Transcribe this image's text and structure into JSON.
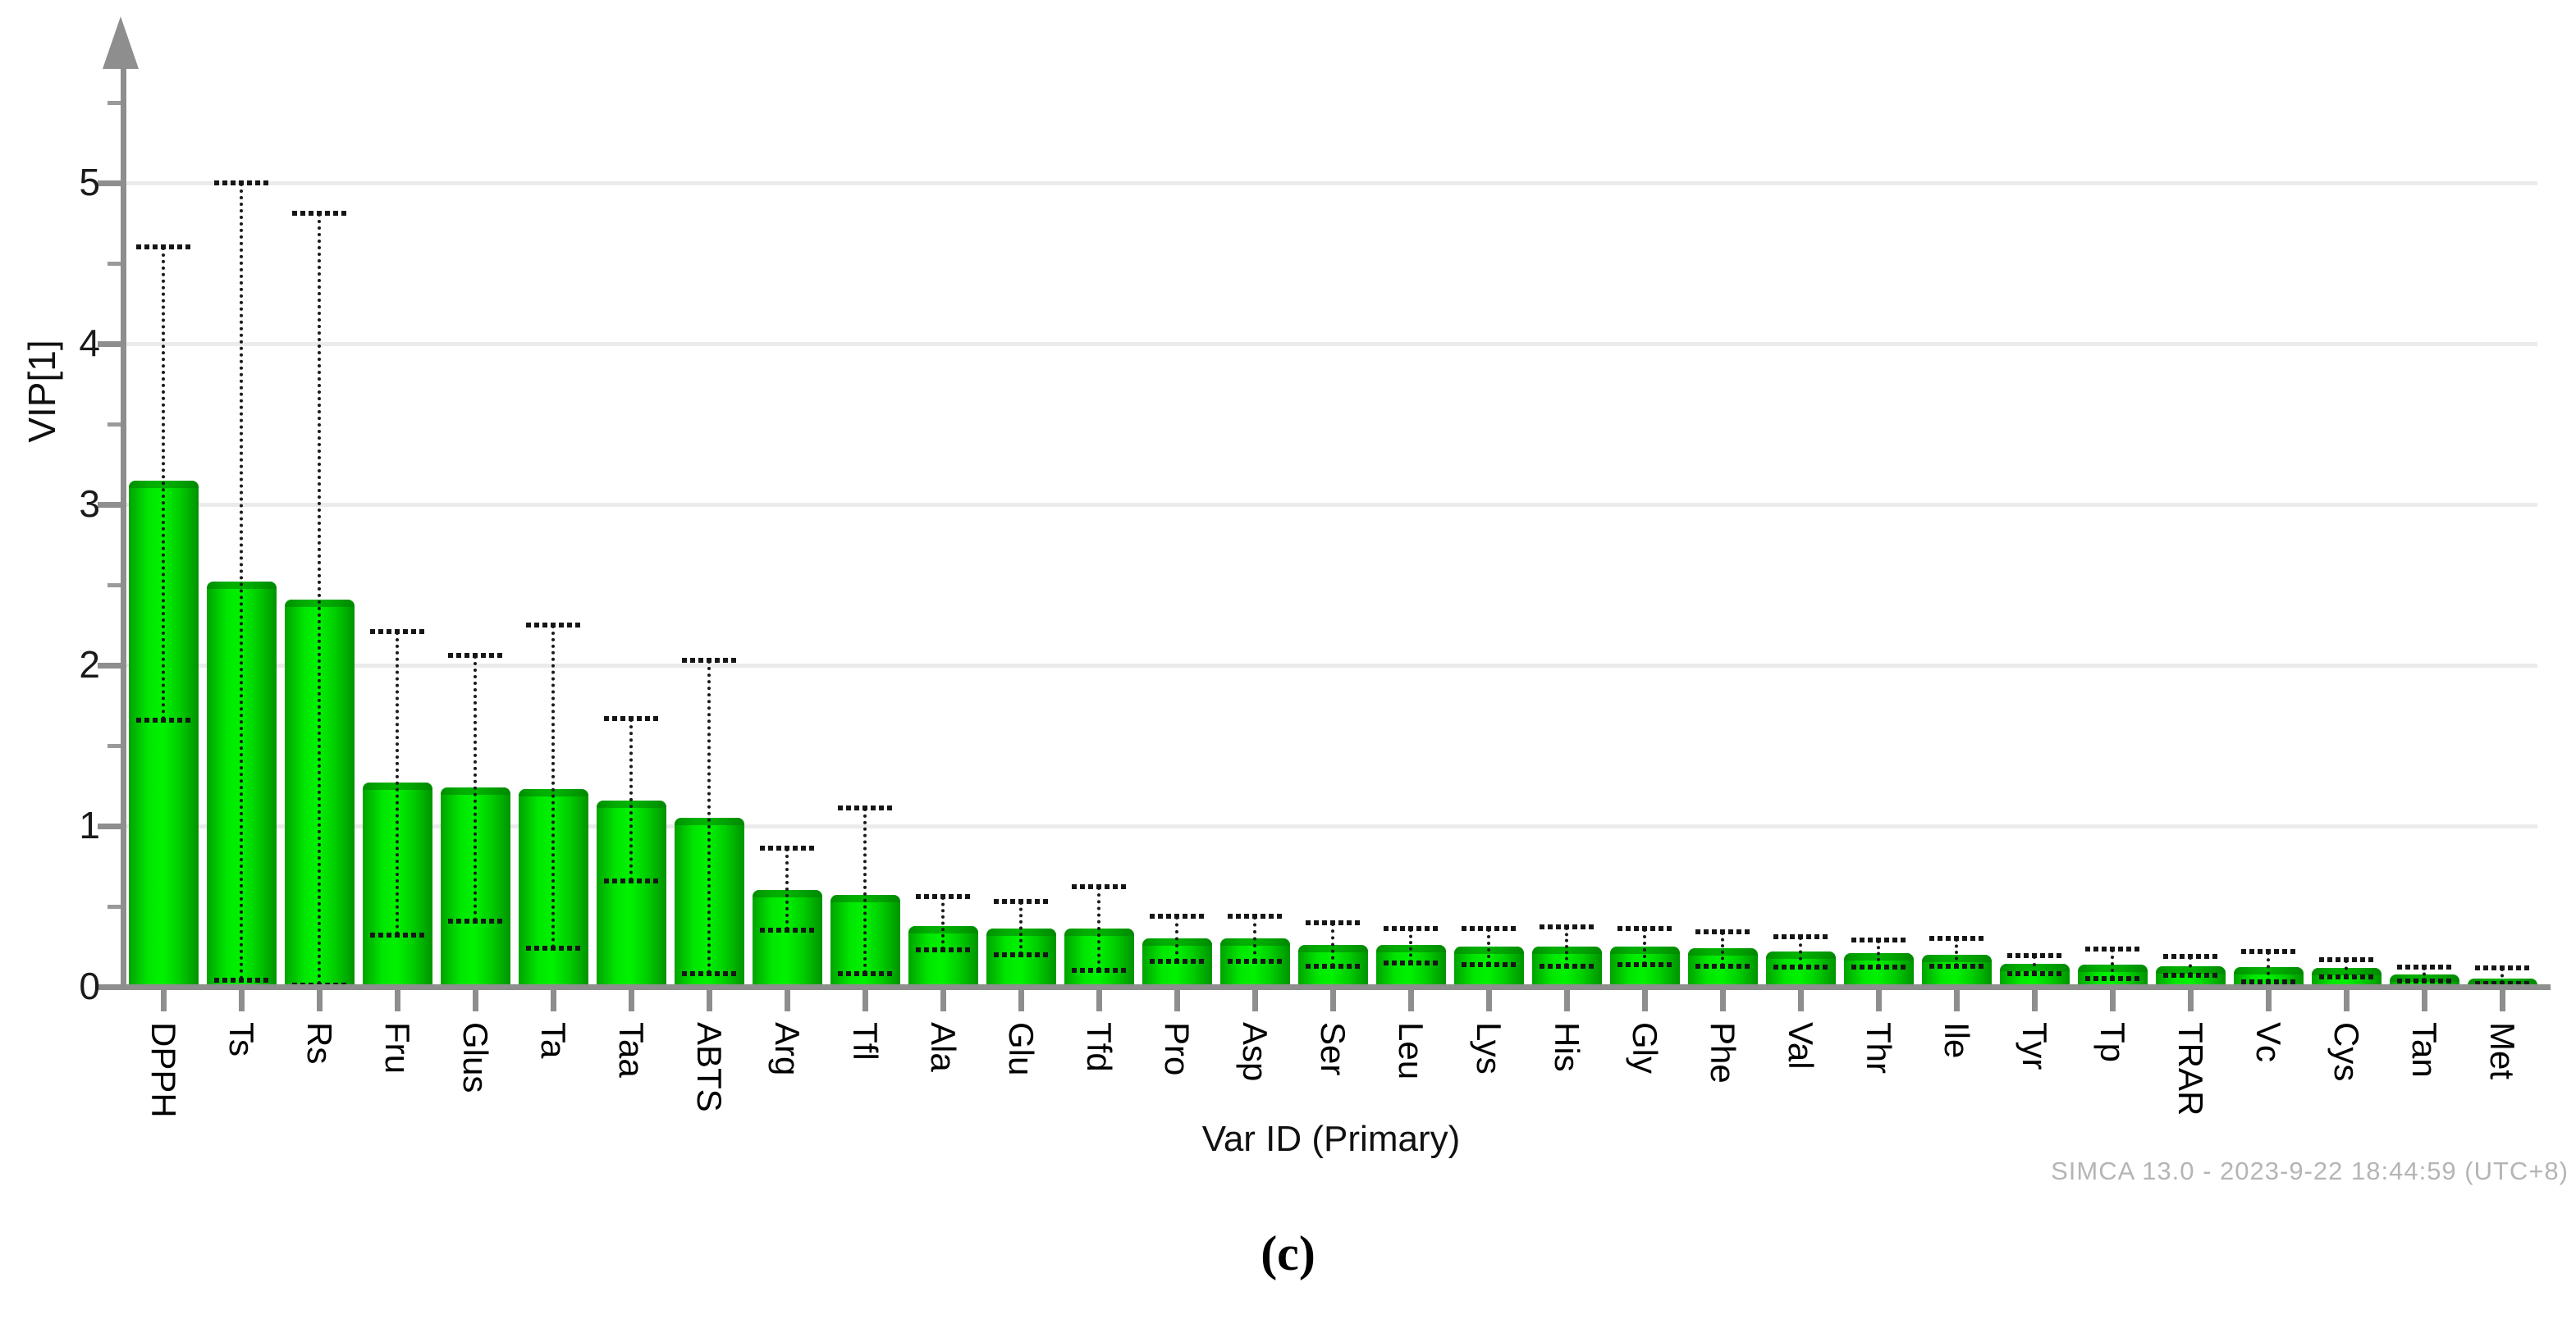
{
  "chart_data": {
    "type": "bar",
    "title": "",
    "xlabel": "Var ID (Primary)",
    "ylabel": "VIP[1]",
    "ylim": [
      0,
      5.7
    ],
    "yticks": [
      0,
      1,
      2,
      3,
      4,
      5
    ],
    "grid": "horizontal-major",
    "legend": "none",
    "bar_color_center": "#00F200",
    "bar_color_edge": "#009300",
    "error_bar_color": "#1b1b1b",
    "axis_color": "#8e8e8e",
    "gridline_color": "#ebebeb",
    "categories": [
      "DPPH",
      "Ts",
      "Rs",
      "Fru",
      "Glus",
      "Ta",
      "Taa",
      "ABTS",
      "Arg",
      "Tfl",
      "Ala",
      "Glu",
      "Tfd",
      "Pro",
      "Asp",
      "Ser",
      "Leu",
      "Lys",
      "His",
      "Gly",
      "Phe",
      "Val",
      "Thr",
      "Ile",
      "Tyr",
      "Tp",
      "TRAR",
      "Vc",
      "Cys",
      "Tan",
      "Met"
    ],
    "values": [
      3.15,
      2.52,
      2.41,
      1.27,
      1.24,
      1.23,
      1.16,
      1.05,
      0.6,
      0.57,
      0.38,
      0.36,
      0.36,
      0.3,
      0.3,
      0.26,
      0.26,
      0.25,
      0.25,
      0.25,
      0.24,
      0.22,
      0.21,
      0.2,
      0.145,
      0.14,
      0.13,
      0.12,
      0.115,
      0.075,
      0.05
    ],
    "error_low": [
      1.66,
      0.04,
      0.01,
      0.32,
      0.41,
      0.24,
      0.66,
      0.08,
      0.35,
      0.08,
      0.23,
      0.2,
      0.1,
      0.16,
      0.16,
      0.13,
      0.15,
      0.14,
      0.13,
      0.14,
      0.13,
      0.12,
      0.12,
      0.13,
      0.08,
      0.05,
      0.07,
      0.03,
      0.06,
      0.035,
      0.02
    ],
    "error_high": [
      4.6,
      5.0,
      4.81,
      2.21,
      2.06,
      2.25,
      1.67,
      2.03,
      0.86,
      1.11,
      0.56,
      0.53,
      0.62,
      0.44,
      0.44,
      0.4,
      0.36,
      0.36,
      0.37,
      0.36,
      0.34,
      0.31,
      0.29,
      0.3,
      0.195,
      0.235,
      0.19,
      0.22,
      0.17,
      0.12,
      0.115
    ]
  },
  "footer": {
    "credit": "SIMCA 13.0 - 2023-9-22 18:44:59 (UTC+8)"
  },
  "caption": "(c)"
}
